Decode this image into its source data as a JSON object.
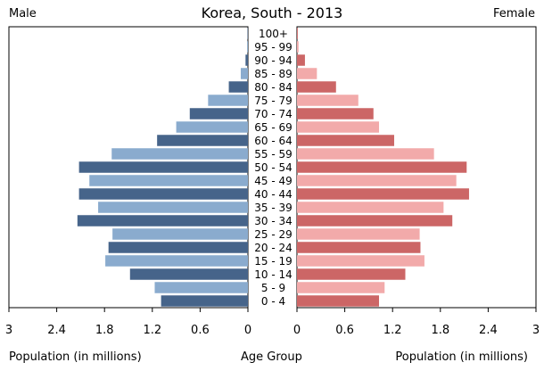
{
  "chart_data": {
    "type": "bar",
    "title": "Korea, South - 2013",
    "left_side_label": "Male",
    "right_side_label": "Female",
    "xlabel_left": "Population (in millions)",
    "xlabel_center": "Age Group",
    "xlabel_right": "Population (in millions)",
    "xlim": [
      0,
      3
    ],
    "x_ticks": [
      "3",
      "2.4",
      "1.8",
      "1.2",
      "0.6",
      "0",
      "0",
      "0.6",
      "1.2",
      "1.8",
      "2.4",
      "3"
    ],
    "categories": [
      "100+",
      "95 - 99",
      "90 - 94",
      "85 - 89",
      "80 - 84",
      "75 - 79",
      "70 - 74",
      "65 - 69",
      "60 - 64",
      "55 - 59",
      "50 - 54",
      "45 - 49",
      "40 - 44",
      "35 - 39",
      "30 - 34",
      "25 - 29",
      "20 - 24",
      "15 - 19",
      "10 - 14",
      "5 - 9",
      "0 - 4"
    ],
    "series": [
      {
        "name": "Male",
        "values": [
          0.005,
          0.01,
          0.03,
          0.09,
          0.24,
          0.5,
          0.73,
          0.9,
          1.14,
          1.71,
          2.12,
          1.99,
          2.12,
          1.88,
          2.14,
          1.7,
          1.75,
          1.79,
          1.48,
          1.17,
          1.09
        ]
      },
      {
        "name": "Female",
        "values": [
          0.01,
          0.02,
          0.1,
          0.25,
          0.49,
          0.77,
          0.96,
          1.03,
          1.22,
          1.72,
          2.13,
          2.0,
          2.16,
          1.84,
          1.95,
          1.54,
          1.55,
          1.6,
          1.36,
          1.1,
          1.03
        ]
      }
    ],
    "colors": {
      "male_dark": "#46648a",
      "male_light": "#8aabce",
      "female_dark": "#cc6666",
      "female_light": "#f2aaaa",
      "axis": "#000000"
    },
    "grid": false,
    "legend": "none"
  }
}
